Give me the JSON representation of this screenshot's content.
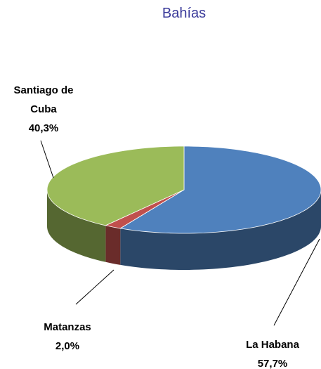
{
  "chart_data": {
    "type": "pie",
    "title": "Bahías",
    "categories": [
      "La Habana",
      "Matanzas",
      "Santiago de Cuba"
    ],
    "values": [
      57.7,
      2.0,
      40.3
    ],
    "value_labels": [
      "57,7%",
      "2,0%",
      "40,3%"
    ],
    "colors": [
      "#4f81bd",
      "#c0504d",
      "#9bbb59"
    ]
  }
}
